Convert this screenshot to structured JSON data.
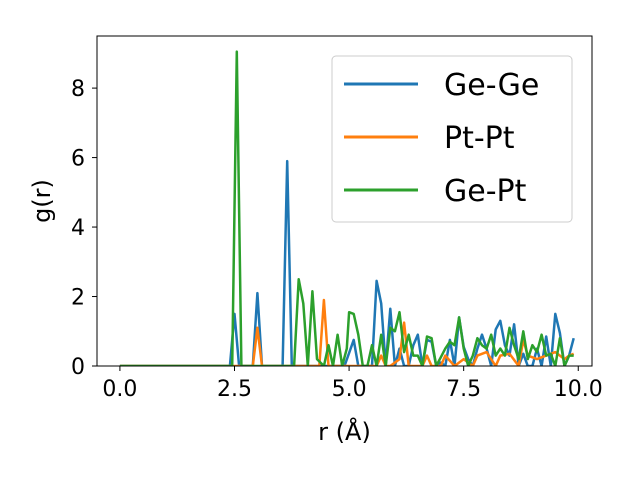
{
  "chart_data": {
    "type": "line",
    "title": "",
    "xlabel": "r (Å)",
    "ylabel": "g(r)",
    "xlim": [
      -0.5,
      10.3
    ],
    "ylim": [
      0,
      9.5
    ],
    "x_ticks": [
      0.0,
      2.5,
      5.0,
      7.5,
      10.0
    ],
    "x_tick_labels": [
      "0.0",
      "2.5",
      "5.0",
      "7.5",
      "10.0"
    ],
    "y_ticks": [
      0,
      2,
      4,
      6,
      8
    ],
    "y_tick_labels": [
      "0",
      "2",
      "4",
      "6",
      "8"
    ],
    "grid": false,
    "legend_position": "top-right",
    "series": [
      {
        "name": "Ge-Ge",
        "color": "#1f77b4",
        "x": [
          0.0,
          2.4,
          2.5,
          2.6,
          2.9,
          3.0,
          3.1,
          3.55,
          3.65,
          3.75,
          4.9,
          5.1,
          5.2,
          5.5,
          5.6,
          5.7,
          5.8,
          5.9,
          6.0,
          6.1,
          6.2,
          6.3,
          6.4,
          6.5,
          6.6,
          6.7,
          6.8,
          6.9,
          7.0,
          7.1,
          7.2,
          7.3,
          7.4,
          7.5,
          7.6,
          7.7,
          7.8,
          7.9,
          8.0,
          8.1,
          8.2,
          8.3,
          8.4,
          8.5,
          8.6,
          8.7,
          8.8,
          8.9,
          9.0,
          9.1,
          9.2,
          9.3,
          9.4,
          9.5,
          9.6,
          9.7,
          9.8,
          9.9
        ],
        "y": [
          0,
          0,
          1.5,
          0,
          0,
          2.1,
          0,
          0,
          5.9,
          0,
          0,
          0.75,
          0,
          0,
          2.45,
          1.8,
          0,
          1.65,
          0,
          0.5,
          0,
          0,
          0.6,
          0.9,
          0,
          0.75,
          0.7,
          0,
          0.1,
          0,
          0.75,
          0,
          1.4,
          0.55,
          0.2,
          0,
          0.5,
          0.9,
          0.5,
          0,
          1.05,
          1.3,
          0.6,
          0.3,
          1.2,
          0,
          0.35,
          0,
          0,
          0.5,
          0,
          0.85,
          0,
          1.5,
          0.95,
          0,
          0.3,
          0.8
        ]
      },
      {
        "name": "Pt-Pt",
        "color": "#ff7f0e",
        "x": [
          0.0,
          2.9,
          3.0,
          3.1,
          4.35,
          4.45,
          4.55,
          5.6,
          5.7,
          5.8,
          5.9,
          6.1,
          6.2,
          6.3,
          6.6,
          6.7,
          6.8,
          7.0,
          7.1,
          7.3,
          7.5,
          7.7,
          7.8,
          8.0,
          8.2,
          8.3,
          8.5,
          8.7,
          8.8,
          8.9,
          9.1,
          9.3,
          9.5,
          9.7,
          9.8,
          9.9
        ],
        "y": [
          0,
          0,
          1.1,
          0,
          0,
          1.9,
          0,
          0,
          0.3,
          0,
          0,
          0.2,
          1.25,
          0,
          0,
          0.3,
          0,
          0,
          0.3,
          0,
          0.2,
          0,
          0.3,
          0.4,
          0,
          0.3,
          0.35,
          0,
          0.75,
          0.3,
          0.2,
          0.3,
          0.4,
          0.2,
          0.3,
          0.35
        ]
      },
      {
        "name": "Ge-Pt",
        "color": "#2ca02c",
        "x": [
          0.0,
          2.45,
          2.55,
          2.65,
          3.8,
          3.9,
          4.0,
          4.1,
          4.2,
          4.3,
          4.45,
          4.55,
          4.65,
          4.75,
          4.85,
          4.95,
          5.0,
          5.1,
          5.2,
          5.3,
          5.4,
          5.5,
          5.6,
          5.7,
          5.8,
          5.9,
          6.0,
          6.1,
          6.2,
          6.3,
          6.4,
          6.5,
          6.6,
          6.7,
          6.8,
          6.9,
          7.0,
          7.1,
          7.2,
          7.3,
          7.4,
          7.5,
          7.6,
          7.7,
          7.8,
          7.9,
          8.0,
          8.1,
          8.2,
          8.3,
          8.4,
          8.5,
          8.6,
          8.7,
          8.8,
          8.9,
          9.0,
          9.1,
          9.2,
          9.3,
          9.4,
          9.5,
          9.6,
          9.7,
          9.8,
          9.9
        ],
        "y": [
          0,
          0,
          9.05,
          0,
          0,
          2.5,
          1.8,
          0,
          2.15,
          0.2,
          0,
          0.6,
          0,
          0.9,
          0,
          0.5,
          1.55,
          1.5,
          0.9,
          0,
          0,
          0.6,
          0,
          0.9,
          0,
          1.1,
          1.0,
          1.55,
          0.4,
          0.9,
          0.3,
          0.3,
          0,
          0.85,
          0.8,
          0,
          0.25,
          0.5,
          0.7,
          0.6,
          1.4,
          0.5,
          0,
          0.3,
          0.8,
          0.6,
          0.5,
          0.9,
          0.3,
          0.5,
          0.3,
          1.1,
          0.6,
          0.2,
          1.0,
          0.2,
          0.6,
          0.4,
          0.9,
          0.3,
          0.35,
          0,
          0.8,
          0,
          0.3,
          0.3
        ]
      }
    ]
  }
}
